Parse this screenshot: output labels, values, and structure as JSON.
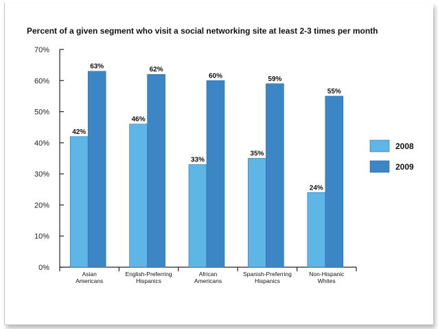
{
  "chart_data": {
    "type": "bar",
    "title": "Percent of a given segment who visit a social networking site at least 2-3 times per month",
    "categories": [
      [
        "Asian",
        "Americans"
      ],
      [
        "English-Preferring",
        "Hispanics"
      ],
      [
        "African",
        "Americans"
      ],
      [
        "Spanish-Preferring",
        "Hispanics"
      ],
      [
        "Non-Hispanic",
        "Whites"
      ]
    ],
    "series": [
      {
        "name": "2008",
        "values": [
          42,
          46,
          33,
          35,
          24
        ],
        "labels": [
          "42%",
          "46%",
          "33%",
          "35%",
          "24%"
        ],
        "color": "#5db6e6"
      },
      {
        "name": "2009",
        "values": [
          63,
          62,
          60,
          59,
          55
        ],
        "labels": [
          "63%",
          "62%",
          "60%",
          "59%",
          "55%"
        ],
        "color": "#3d86c6"
      }
    ],
    "ylim": [
      0,
      70
    ],
    "yticks": [
      0,
      10,
      20,
      30,
      40,
      50,
      60,
      70
    ],
    "ytick_labels": [
      "0%",
      "10%",
      "20%",
      "30%",
      "40%",
      "50%",
      "60%",
      "70%"
    ],
    "xlabel": "",
    "ylabel": "",
    "grid": false,
    "legend_position": "right"
  }
}
